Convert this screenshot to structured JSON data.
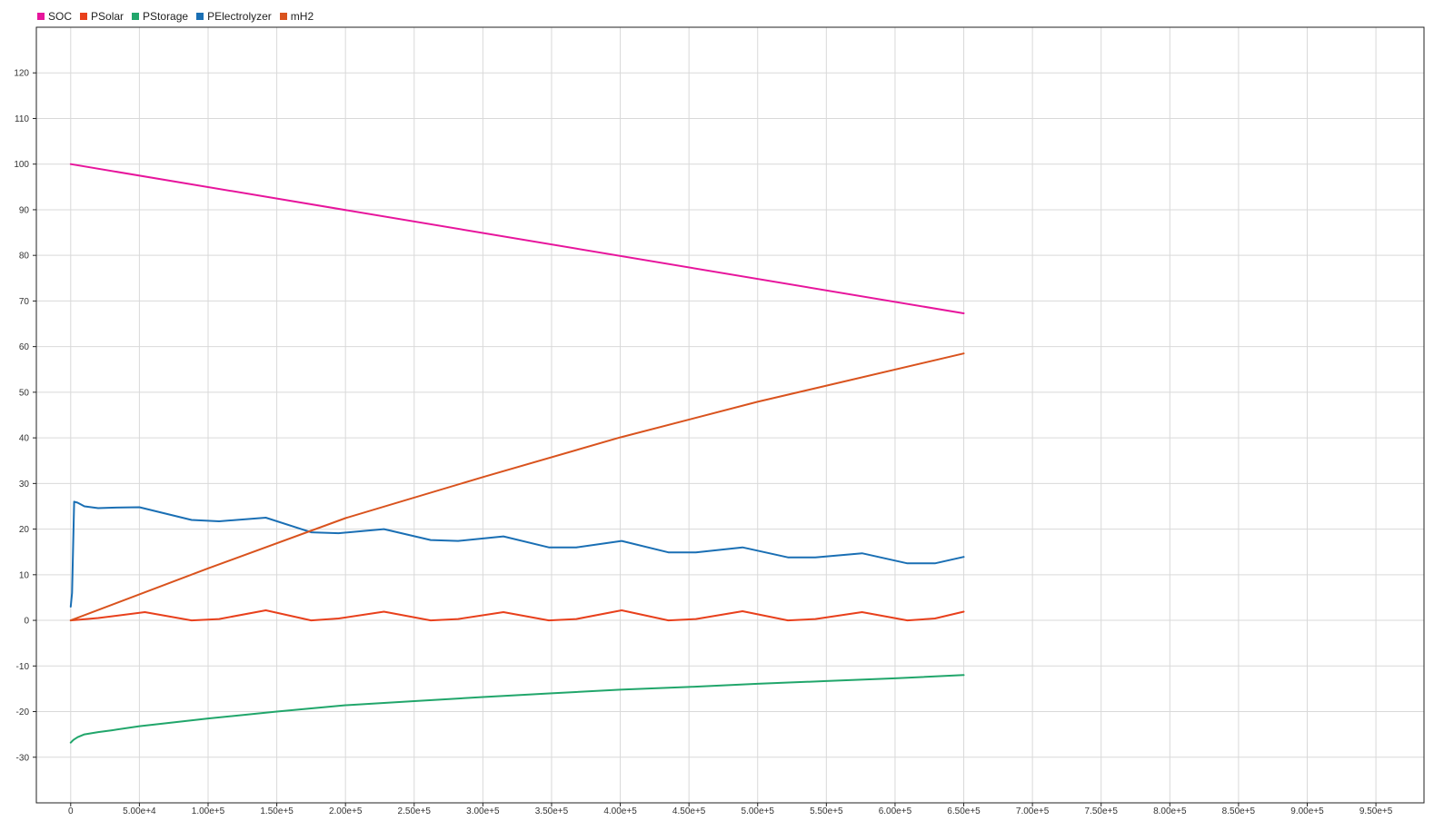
{
  "colors": {
    "grid": "#d9d9d9",
    "axis": "#222222",
    "background": "#ffffff"
  },
  "chart_data": {
    "type": "line",
    "title": "",
    "xlabel": "",
    "ylabel": "",
    "grid": true,
    "legend_position": "top-left",
    "xlim": [
      -25000,
      985000
    ],
    "ylim": [
      -40,
      130
    ],
    "x_ticks": [
      0,
      50000,
      100000,
      150000,
      200000,
      250000,
      300000,
      350000,
      400000,
      450000,
      500000,
      550000,
      600000,
      650000,
      700000,
      750000,
      800000,
      850000,
      900000,
      950000
    ],
    "x_tick_labels": [
      "0",
      "5.00e+4",
      "1.00e+5",
      "1.50e+5",
      "2.00e+5",
      "2.50e+5",
      "3.00e+5",
      "3.50e+5",
      "4.00e+5",
      "4.50e+5",
      "5.00e+5",
      "5.50e+5",
      "6.00e+5",
      "6.50e+5",
      "7.00e+5",
      "7.50e+5",
      "8.00e+5",
      "8.50e+5",
      "9.00e+5",
      "9.50e+5"
    ],
    "y_ticks": [
      -30,
      -20,
      -10,
      0,
      10,
      20,
      30,
      40,
      50,
      60,
      70,
      80,
      90,
      100,
      110,
      120
    ],
    "y_tick_labels": [
      "-30",
      "-20",
      "-10",
      "0",
      "10",
      "20",
      "30",
      "40",
      "50",
      "60",
      "70",
      "80",
      "90",
      "100",
      "110",
      "120"
    ],
    "series": [
      {
        "name": "SOC",
        "color": "#e7159c",
        "x": [
          0,
          650000
        ],
        "y": [
          100,
          67.3
        ]
      },
      {
        "name": "PSolar",
        "color": "#e8401c",
        "x": [
          0,
          20000,
          54000,
          88000,
          108000,
          142000,
          175000,
          195000,
          228000,
          262000,
          282000,
          315000,
          348000,
          368000,
          401000,
          435000,
          455000,
          489000,
          522000,
          542000,
          576000,
          609000,
          629000,
          650000
        ],
        "y": [
          0,
          0.5,
          1.8,
          0,
          0.3,
          2.2,
          0,
          0.4,
          1.9,
          0,
          0.3,
          1.8,
          0,
          0.3,
          2.2,
          0,
          0.3,
          2.0,
          0,
          0.3,
          1.8,
          0,
          0.4,
          1.9
        ]
      },
      {
        "name": "PStorage",
        "color": "#21a66b",
        "x": [
          0,
          2000,
          5000,
          10000,
          20000,
          30000,
          50000,
          100000,
          150000,
          200000,
          250000,
          300000,
          350000,
          400000,
          450000,
          500000,
          550000,
          600000,
          650000
        ],
        "y": [
          -26.8,
          -26.2,
          -25.6,
          -25,
          -24.5,
          -24.1,
          -23.2,
          -21.5,
          -20,
          -18.6,
          -17.7,
          -16.8,
          -16,
          -15.2,
          -14.6,
          -13.9,
          -13.3,
          -12.7,
          -12
        ]
      },
      {
        "name": "PElectrolyzer",
        "color": "#1a6fb4",
        "x": [
          0,
          1000,
          2500,
          5000,
          10000,
          20000,
          30000,
          50000,
          88000,
          108000,
          142000,
          175000,
          195000,
          228000,
          262000,
          282000,
          315000,
          348000,
          368000,
          401000,
          435000,
          455000,
          489000,
          522000,
          542000,
          576000,
          609000,
          629000,
          650000
        ],
        "y": [
          3,
          6,
          26,
          25.8,
          25,
          24.6,
          24.7,
          24.8,
          22,
          21.7,
          22.5,
          19.3,
          19.1,
          20,
          17.6,
          17.4,
          18.4,
          16,
          16,
          17.4,
          14.9,
          14.9,
          16,
          13.8,
          13.8,
          14.7,
          12.5,
          12.5,
          13.9
        ]
      },
      {
        "name": "mH2",
        "color": "#d9531e",
        "x": [
          0,
          100000,
          200000,
          300000,
          400000,
          500000,
          650000
        ],
        "y": [
          0,
          11.4,
          22.4,
          31.4,
          40.1,
          47.9,
          58.5
        ]
      }
    ]
  }
}
